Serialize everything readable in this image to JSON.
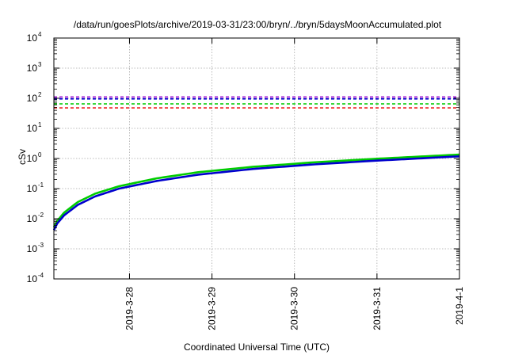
{
  "chart_data": {
    "type": "line",
    "title": "/data/run/goesPlots/archive/2019-03-31/23:00/bryn/../bryn/5daysMoonAccumulated.plot",
    "xlabel": "Coordinated Universal Time (UTC)",
    "ylabel": "cSv",
    "x_unit": "date",
    "xlim": [
      "2019-03-27T02:00",
      "2019-04-01T00:00"
    ],
    "x_ticks": [
      "2019-3-28",
      "2019-3-29",
      "2019-3-30",
      "2019-3-31",
      "2019-4-1"
    ],
    "y_scale": "log",
    "ylim": [
      0.0001,
      10000
    ],
    "y_tick_exponents": [
      "-4",
      "-3",
      "-2",
      "-1",
      "0",
      "1",
      "2",
      "3",
      "4"
    ],
    "grid": true,
    "legend": "none",
    "reference_lines": [
      {
        "value": 110,
        "color": "#9400d3",
        "style": "dashed"
      },
      {
        "value": 95,
        "color": "#0000cd",
        "style": "dashed"
      },
      {
        "value": 65,
        "color": "#00cc00",
        "style": "dashed"
      },
      {
        "value": 48,
        "color": "#ee0000",
        "style": "dashed"
      }
    ],
    "series": [
      {
        "color": "#00cc00",
        "x": [
          "2019-03-27T02:00",
          "2019-03-27T03:00",
          "2019-03-27T05:00",
          "2019-03-27T09:00",
          "2019-03-27T14:00",
          "2019-03-27T21:00",
          "2019-03-28T08:00",
          "2019-03-28T20:00",
          "2019-03-29T12:00",
          "2019-03-30T06:00",
          "2019-03-31T00:00",
          "2019-03-31T12:00",
          "2019-04-01T00:00"
        ],
        "y": [
          0.0052,
          0.0085,
          0.016,
          0.036,
          0.068,
          0.12,
          0.22,
          0.35,
          0.53,
          0.75,
          0.98,
          1.15,
          1.35
        ]
      },
      {
        "color": "#0000cd",
        "x": [
          "2019-03-27T02:00",
          "2019-03-27T03:00",
          "2019-03-27T05:00",
          "2019-03-27T09:00",
          "2019-03-27T14:00",
          "2019-03-27T21:00",
          "2019-03-28T08:00",
          "2019-03-28T20:00",
          "2019-03-29T12:00",
          "2019-03-30T06:00",
          "2019-03-31T00:00",
          "2019-03-31T12:00",
          "2019-04-01T00:00"
        ],
        "y": [
          0.0042,
          0.007,
          0.013,
          0.029,
          0.055,
          0.1,
          0.18,
          0.29,
          0.45,
          0.64,
          0.85,
          1.0,
          1.18
        ]
      }
    ]
  }
}
